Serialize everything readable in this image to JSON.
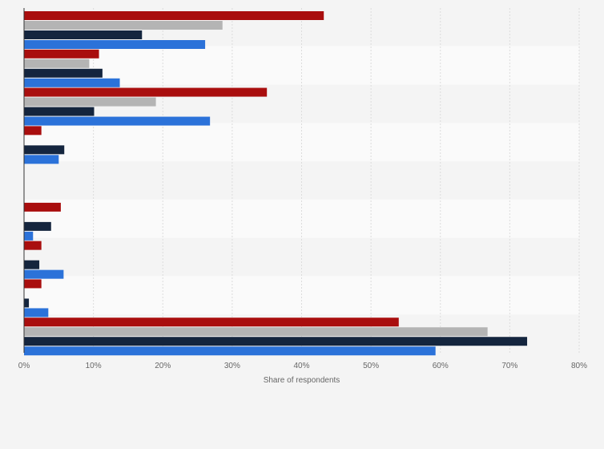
{
  "chart_data": {
    "type": "bar",
    "orientation": "horizontal",
    "xlabel": "Share of respondents",
    "xlim": [
      0,
      80
    ],
    "x_ticks": [
      "0%",
      "10%",
      "20%",
      "30%",
      "40%",
      "50%",
      "60%",
      "70%",
      "80%"
    ],
    "grid": "vertical dashed",
    "category_count": 8,
    "colors": [
      "#a90e0e",
      "#b4b4b4",
      "#14253e",
      "#2b72d9"
    ],
    "series": [
      {
        "values": [
          43.2,
          10.8,
          35.0,
          2.5,
          0,
          5.3,
          2.5,
          2.5,
          54.0
        ]
      },
      {
        "values": [
          28.6,
          9.4,
          19.0,
          0,
          0,
          0,
          0,
          0,
          66.8
        ]
      },
      {
        "values": [
          17.0,
          11.3,
          10.1,
          5.8,
          0,
          3.9,
          2.2,
          0.7,
          72.5
        ]
      },
      {
        "values": [
          26.1,
          13.8,
          26.8,
          5.0,
          0,
          1.3,
          5.7,
          3.5,
          59.3
        ]
      }
    ]
  }
}
